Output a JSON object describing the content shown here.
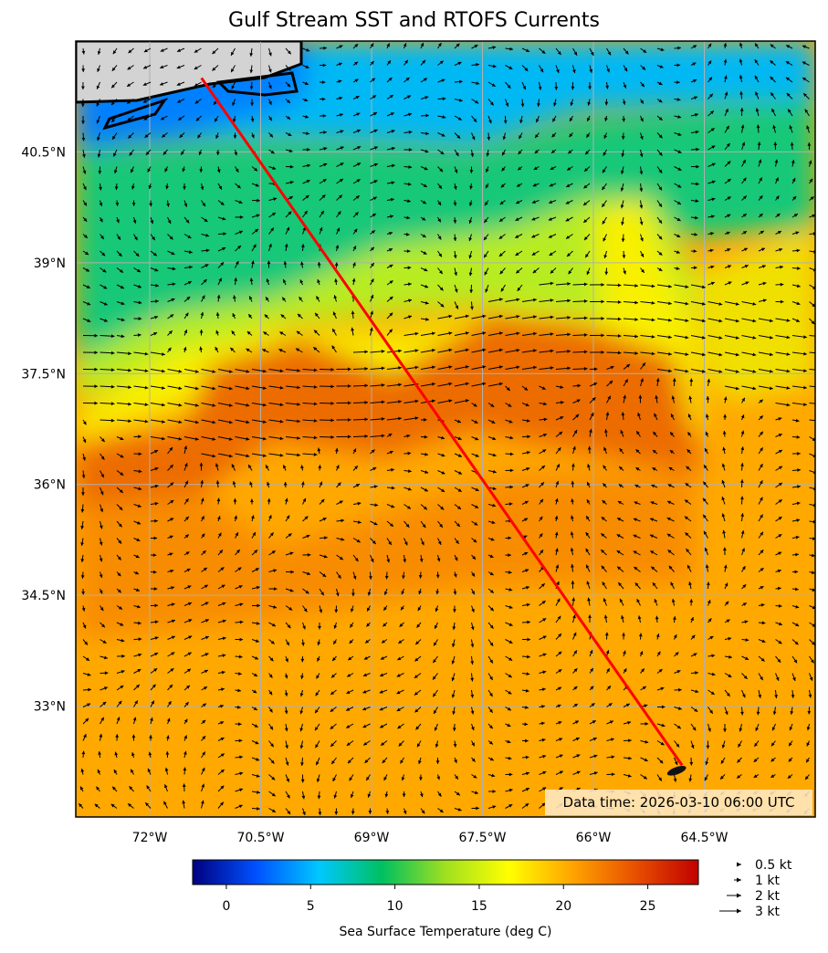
{
  "title": "Gulf Stream SST and RTOFS Currents",
  "data_time": "Data time: 2026-03-10 06:00 UTC",
  "map": {
    "lon_range": [
      -73.0,
      -63.0
    ],
    "lat_range": [
      31.5,
      42.0
    ],
    "lon_ticks": [
      {
        "value": -72.0,
        "label": "72°W"
      },
      {
        "value": -70.5,
        "label": "70.5°W"
      },
      {
        "value": -69.0,
        "label": "69°W"
      },
      {
        "value": -67.5,
        "label": "67.5°W"
      },
      {
        "value": -66.0,
        "label": "66°W"
      },
      {
        "value": -64.5,
        "label": "64.5°W"
      }
    ],
    "lat_ticks": [
      {
        "value": 40.5,
        "label": "40.5°N"
      },
      {
        "value": 39.0,
        "label": "39°N"
      },
      {
        "value": 37.5,
        "label": "37.5°N"
      },
      {
        "value": 36.0,
        "label": "36°N"
      },
      {
        "value": 34.5,
        "label": "34.5°N"
      },
      {
        "value": 33.0,
        "label": "33°N"
      }
    ],
    "route": {
      "start": {
        "lon": -71.3,
        "lat": 41.5
      },
      "end": {
        "lon": -64.8,
        "lat": 32.2
      },
      "color": "#ff0000"
    },
    "land_color": "#d3d3d3",
    "grid_color": "#b0b0b0"
  },
  "colorbar": {
    "label": "Sea Surface Temperature (deg C)",
    "range": [
      -2,
      28
    ],
    "ticks": [
      {
        "value": 0,
        "label": "0"
      },
      {
        "value": 5,
        "label": "5"
      },
      {
        "value": 10,
        "label": "10"
      },
      {
        "value": 15,
        "label": "15"
      },
      {
        "value": 20,
        "label": "20"
      },
      {
        "value": 25,
        "label": "25"
      }
    ],
    "colormap": [
      "#00007f",
      "#0050ff",
      "#00c8ff",
      "#00c060",
      "#a0e020",
      "#ffff00",
      "#ffa500",
      "#e85000",
      "#c00000"
    ]
  },
  "quiver_key": [
    {
      "speed": 0.5,
      "label": "0.5 kt"
    },
    {
      "speed": 1,
      "label": "1 kt"
    },
    {
      "speed": 2,
      "label": "2 kt"
    },
    {
      "speed": 3,
      "label": "3 kt"
    }
  ]
}
